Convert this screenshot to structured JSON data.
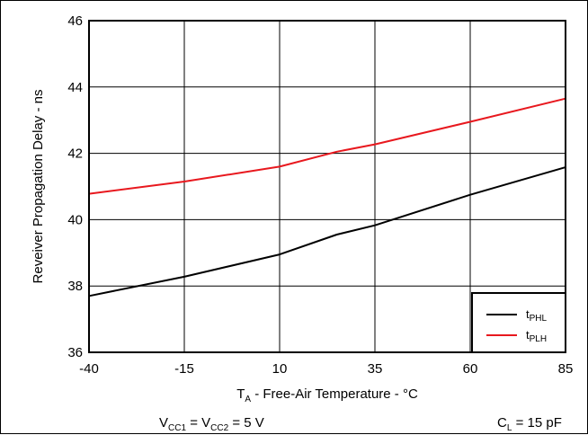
{
  "chart_data": {
    "type": "line",
    "xlabel": {
      "main": "T",
      "sub": "A",
      "rest": " - Free-Air Temperature - °C"
    },
    "ylabel": "Reveiver Propagation Delay - ns",
    "xlim": [
      -40,
      85
    ],
    "ylim": [
      36,
      46
    ],
    "xticks": [
      "-40",
      "-15",
      "10",
      "35",
      "60",
      "85"
    ],
    "yticks": [
      "36",
      "38",
      "40",
      "42",
      "44",
      "46"
    ],
    "grid": true,
    "legend_position": "bottom-right",
    "series": [
      {
        "name": {
          "main": "t",
          "sub": "PHL"
        },
        "color": "#000000",
        "x": [
          -40,
          -15,
          10,
          25,
          35,
          60,
          85
        ],
        "y": [
          37.7,
          38.28,
          38.95,
          39.55,
          39.83,
          40.75,
          41.58
        ]
      },
      {
        "name": {
          "main": "t",
          "sub": "PLH"
        },
        "color": "#e8181e",
        "x": [
          -40,
          -15,
          10,
          25,
          35,
          60,
          85
        ],
        "y": [
          40.78,
          41.15,
          41.6,
          42.05,
          42.27,
          42.95,
          43.65
        ]
      }
    ],
    "annotations": [
      {
        "id": "vcc",
        "parts": [
          {
            "t": "V"
          },
          {
            "t": "CC1",
            "sub": true
          },
          {
            "t": " = V"
          },
          {
            "t": "CC2",
            "sub": true
          },
          {
            "t": " = 5 V"
          }
        ]
      },
      {
        "id": "cl",
        "parts": [
          {
            "t": "C"
          },
          {
            "t": "L",
            "sub": true
          },
          {
            "t": " = 15 pF"
          }
        ]
      }
    ]
  }
}
